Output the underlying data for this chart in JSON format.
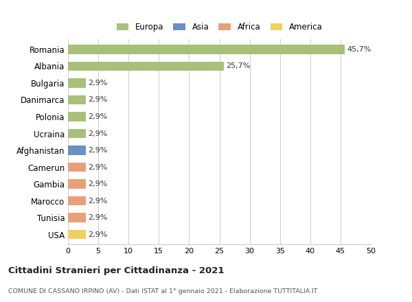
{
  "categories": [
    "Romania",
    "Albania",
    "Bulgaria",
    "Danimarca",
    "Polonia",
    "Ucraina",
    "Afghanistan",
    "Camerun",
    "Gambia",
    "Marocco",
    "Tunisia",
    "USA"
  ],
  "values": [
    45.7,
    25.7,
    2.9,
    2.9,
    2.9,
    2.9,
    2.9,
    2.9,
    2.9,
    2.9,
    2.9,
    2.9
  ],
  "labels": [
    "45,7%",
    "25,7%",
    "2,9%",
    "2,9%",
    "2,9%",
    "2,9%",
    "2,9%",
    "2,9%",
    "2,9%",
    "2,9%",
    "2,9%",
    "2,9%"
  ],
  "colors": [
    "#a8c07a",
    "#a8c07a",
    "#a8c07a",
    "#a8c07a",
    "#a8c07a",
    "#a8c07a",
    "#6a8fc2",
    "#e8a07a",
    "#e8a07a",
    "#e8a07a",
    "#e8a07a",
    "#f0d060"
  ],
  "legend_labels": [
    "Europa",
    "Asia",
    "Africa",
    "America"
  ],
  "legend_colors": [
    "#a8c07a",
    "#6a8fc2",
    "#e8a07a",
    "#f0d060"
  ],
  "title": "Cittadini Stranieri per Cittadinanza - 2021",
  "subtitle": "COMUNE DI CASSANO IRPINO (AV) - Dati ISTAT al 1° gennaio 2021 - Elaborazione TUTTITALIA.IT",
  "xlim": [
    0,
    50
  ],
  "xticks": [
    0,
    5,
    10,
    15,
    20,
    25,
    30,
    35,
    40,
    45,
    50
  ],
  "background_color": "#ffffff",
  "grid_color": "#cccccc",
  "bar_height": 0.55
}
